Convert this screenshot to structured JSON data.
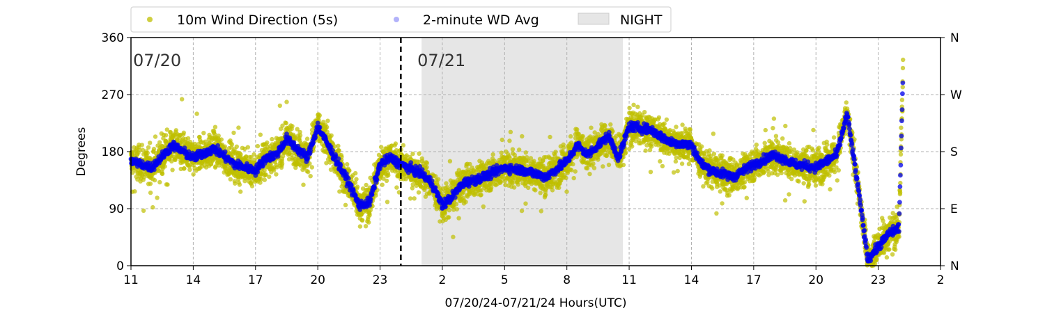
{
  "chart_data": {
    "type": "scatter",
    "xlabel": "07/20/24-07/21/24  Hours(UTC)",
    "ylabel": "Degrees",
    "x_range_hours": [
      11,
      50
    ],
    "ylim": [
      0,
      360
    ],
    "x_ticks": [
      {
        "h": 11,
        "label": "11"
      },
      {
        "h": 14,
        "label": "14"
      },
      {
        "h": 17,
        "label": "17"
      },
      {
        "h": 20,
        "label": "20"
      },
      {
        "h": 23,
        "label": "23"
      },
      {
        "h": 26,
        "label": "2"
      },
      {
        "h": 29,
        "label": "5"
      },
      {
        "h": 32,
        "label": "8"
      },
      {
        "h": 35,
        "label": "11"
      },
      {
        "h": 38,
        "label": "14"
      },
      {
        "h": 41,
        "label": "17"
      },
      {
        "h": 44,
        "label": "20"
      },
      {
        "h": 47,
        "label": "23"
      },
      {
        "h": 50,
        "label": "2"
      }
    ],
    "y_ticks": [
      0,
      90,
      180,
      270,
      360
    ],
    "y_ticks_right": [
      {
        "v": 0,
        "label": "N"
      },
      {
        "v": 90,
        "label": "E"
      },
      {
        "v": 180,
        "label": "S"
      },
      {
        "v": 270,
        "label": "W"
      },
      {
        "v": 360,
        "label": "N"
      }
    ],
    "grid": true,
    "legend_position": "top",
    "date_annotations": [
      {
        "h": 11.1,
        "label": "07/20"
      },
      {
        "h": 24.8,
        "label": "07/21"
      }
    ],
    "midnight_line_h": 24,
    "night_band": {
      "start_h": 25,
      "end_h": 34.7,
      "name": "NIGHT",
      "color": "#e6e6e6"
    },
    "series": [
      {
        "name": "10m Wind Direction (5s)",
        "color": "#bfbf00",
        "marker": "circle",
        "spread_deg": 22,
        "outlier_spread_deg": 55,
        "points_per_hour": 160
      },
      {
        "name": "2-minute WD Avg",
        "color": "#0000ee",
        "marker": "circle",
        "spread_deg": 6,
        "points_per_hour": 60
      }
    ],
    "trend": [
      {
        "h": 11.0,
        "v": 165
      },
      {
        "h": 12.0,
        "v": 155
      },
      {
        "h": 13.0,
        "v": 190
      },
      {
        "h": 14.0,
        "v": 170
      },
      {
        "h": 15.0,
        "v": 185
      },
      {
        "h": 16.0,
        "v": 160
      },
      {
        "h": 17.0,
        "v": 150
      },
      {
        "h": 17.5,
        "v": 170
      },
      {
        "h": 18.0,
        "v": 175
      },
      {
        "h": 18.5,
        "v": 200
      },
      {
        "h": 19.0,
        "v": 185
      },
      {
        "h": 19.5,
        "v": 170
      },
      {
        "h": 20.0,
        "v": 220
      },
      {
        "h": 20.5,
        "v": 190
      },
      {
        "h": 21.0,
        "v": 160
      },
      {
        "h": 21.5,
        "v": 130
      },
      {
        "h": 22.0,
        "v": 95
      },
      {
        "h": 22.5,
        "v": 100
      },
      {
        "h": 23.0,
        "v": 160
      },
      {
        "h": 23.5,
        "v": 170
      },
      {
        "h": 24.0,
        "v": 160
      },
      {
        "h": 25.0,
        "v": 145
      },
      {
        "h": 25.5,
        "v": 130
      },
      {
        "h": 26.0,
        "v": 95
      },
      {
        "h": 26.5,
        "v": 110
      },
      {
        "h": 27.0,
        "v": 130
      },
      {
        "h": 28.0,
        "v": 140
      },
      {
        "h": 29.0,
        "v": 155
      },
      {
        "h": 30.0,
        "v": 150
      },
      {
        "h": 31.0,
        "v": 140
      },
      {
        "h": 32.0,
        "v": 165
      },
      {
        "h": 32.5,
        "v": 190
      },
      {
        "h": 33.0,
        "v": 175
      },
      {
        "h": 34.0,
        "v": 205
      },
      {
        "h": 34.5,
        "v": 170
      },
      {
        "h": 35.0,
        "v": 220
      },
      {
        "h": 36.0,
        "v": 215
      },
      {
        "h": 37.0,
        "v": 195
      },
      {
        "h": 38.0,
        "v": 190
      },
      {
        "h": 38.5,
        "v": 160
      },
      {
        "h": 39.0,
        "v": 150
      },
      {
        "h": 40.0,
        "v": 140
      },
      {
        "h": 41.0,
        "v": 160
      },
      {
        "h": 42.0,
        "v": 175
      },
      {
        "h": 43.0,
        "v": 160
      },
      {
        "h": 44.0,
        "v": 155
      },
      {
        "h": 45.0,
        "v": 175
      },
      {
        "h": 45.5,
        "v": 240
      },
      {
        "h": 46.0,
        "v": 130
      },
      {
        "h": 46.5,
        "v": 10
      },
      {
        "h": 47.0,
        "v": 30
      },
      {
        "h": 47.5,
        "v": 50
      },
      {
        "h": 48.0,
        "v": 60
      },
      {
        "h": 48.2,
        "v": 310
      }
    ]
  }
}
